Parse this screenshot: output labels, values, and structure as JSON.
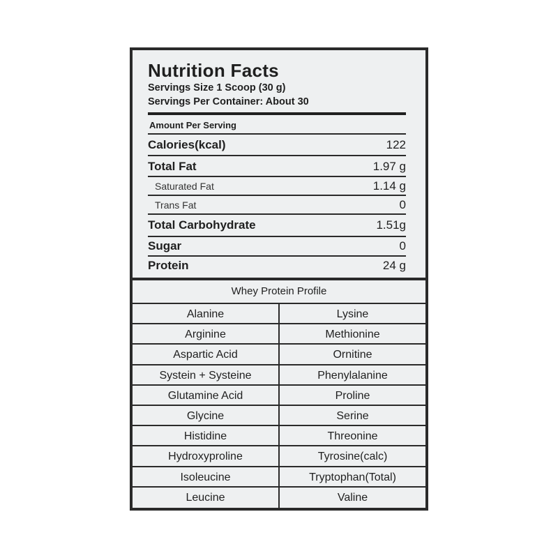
{
  "title": "Nutrition Facts",
  "serving_size": "Servings Size 1 Scoop (30 g)",
  "servings_per_container": "Servings Per Container:  About 30",
  "amount_per_serving": "Amount Per Serving",
  "nutrients": [
    {
      "name": "Calories(kcal)",
      "value": "122",
      "style": "bold"
    },
    {
      "name": "Total Fat",
      "value": "1.97 g",
      "style": "bold"
    },
    {
      "name": "Saturated Fat",
      "value": "1.14 g",
      "style": "sub"
    },
    {
      "name": "Trans Fat",
      "value": "0",
      "style": "sub"
    },
    {
      "name": "Total Carbohydrate",
      "value": "1.51g",
      "style": "bold"
    },
    {
      "name": "Sugar",
      "value": "0",
      "style": "bold"
    },
    {
      "name": "Protein",
      "value": "24 g",
      "style": "bold"
    }
  ],
  "profile": {
    "title": "Whey Protein Profile",
    "left": [
      "Alanine",
      "Arginine",
      "Aspartic Acid",
      "Systein + Systeine",
      "Glutamine Acid",
      "Glycine",
      "Histidine",
      "Hydroxyproline",
      "Isoleucine",
      "Leucine"
    ],
    "right": [
      "Lysine",
      "Methionine",
      "Ornitine",
      "Phenylalanine",
      "Proline",
      "Serine",
      "Threonine",
      "Tyrosine(calc)",
      "Tryptophan(Total)",
      "Valine"
    ]
  }
}
